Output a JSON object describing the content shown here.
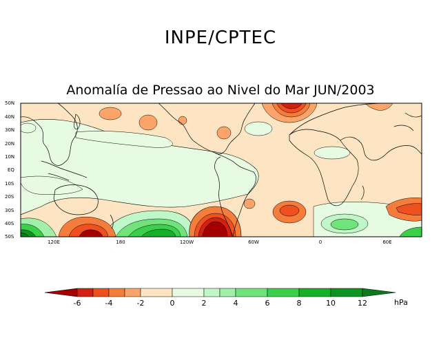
{
  "header": {
    "organization": "INPE/CPTEC",
    "map_title": "Anomalía de Pressao ao Nivel do Mar JUN/2003"
  },
  "axes": {
    "lat_labels": [
      "50N",
      "40N",
      "30N",
      "20N",
      "10N",
      "EQ",
      "10S",
      "20S",
      "30S",
      "40S",
      "50S"
    ],
    "lon_labels": [
      "120E",
      "180",
      "120W",
      "60W",
      "0",
      "60E"
    ]
  },
  "colorbar": {
    "unit": "hPa",
    "tick_labels": [
      "-6",
      "-4",
      "-2",
      "0",
      "2",
      "4",
      "6",
      "8",
      "10",
      "12"
    ],
    "colors": {
      "below_-6": "#a50000",
      "-6_-5": "#d42010",
      "-5_-4": "#ee5020",
      "-4_-3": "#f57d3b",
      "-3_-2": "#fca46a",
      "-2_0": "#fde4c2",
      "0_2": "#e6fbe2",
      "2_3": "#bff7c8",
      "3_4": "#a0f0aa",
      "4_6": "#70e47a",
      "6_8": "#3ccf4c",
      "8_10": "#15b028",
      "10_12": "#0c9420",
      "above_12": "#0a7a1a"
    }
  }
}
